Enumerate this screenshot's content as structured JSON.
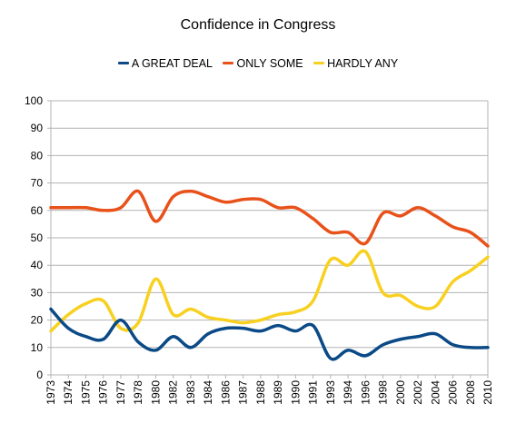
{
  "chart_data": {
    "type": "line",
    "title": "Confidence in Congress",
    "xlabel": "",
    "ylabel": "",
    "ylim": [
      0,
      100
    ],
    "yticks": [
      "0",
      "10",
      "20",
      "30",
      "40",
      "50",
      "60",
      "70",
      "80",
      "90",
      "100"
    ],
    "categories": [
      "1973",
      "1974",
      "1975",
      "1976",
      "1977",
      "1978",
      "1980",
      "1982",
      "1983",
      "1984",
      "1986",
      "1987",
      "1988",
      "1989",
      "1990",
      "1991",
      "1993",
      "1994",
      "1996",
      "1998",
      "2000",
      "2002",
      "2004",
      "2006",
      "2008",
      "2010"
    ],
    "legend_position": "top",
    "grid": true,
    "series": [
      {
        "name": "A GREAT DEAL",
        "color": "#0b4a86",
        "values": [
          24,
          17,
          14,
          13,
          20,
          12,
          9,
          14,
          10,
          15,
          17,
          17,
          16,
          18,
          16,
          18,
          6,
          9,
          7,
          11,
          13,
          14,
          15,
          11,
          10,
          10
        ]
      },
      {
        "name": "ONLY SOME",
        "color": "#e8521a",
        "values": [
          61,
          61,
          61,
          60,
          61,
          67,
          56,
          65,
          67,
          65,
          63,
          64,
          64,
          61,
          61,
          57,
          52,
          52,
          48,
          59,
          58,
          61,
          58,
          54,
          52,
          47
        ]
      },
      {
        "name": "HARDLY ANY",
        "color": "#f8d020",
        "values": [
          16,
          22,
          26,
          27,
          17,
          19,
          35,
          22,
          24,
          21,
          20,
          19,
          20,
          22,
          23,
          27,
          42,
          40,
          45,
          30,
          29,
          25,
          25,
          34,
          38,
          43
        ]
      }
    ]
  }
}
